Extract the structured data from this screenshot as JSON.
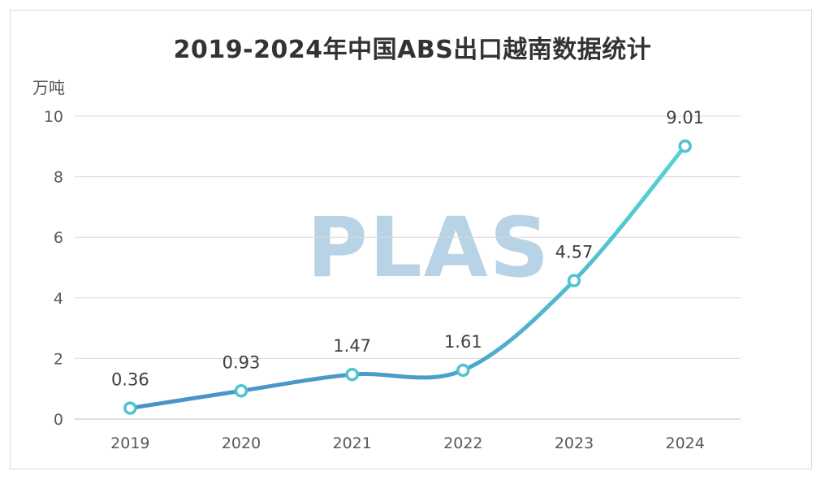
{
  "chart_data": {
    "type": "line",
    "title": "2019-2024年中国ABS出口越南数据统计",
    "ylabel": "万吨",
    "xlabel": "",
    "categories": [
      "2019",
      "2020",
      "2021",
      "2022",
      "2023",
      "2024"
    ],
    "series": [
      {
        "values": [
          0.36,
          0.93,
          1.47,
          1.61,
          4.57,
          9.01
        ]
      }
    ],
    "data_labels": [
      "0.36",
      "0.93",
      "1.47",
      "1.61",
      "4.57",
      "9.01"
    ],
    "ylim": [
      0,
      10
    ],
    "yticks": [
      "0",
      "2",
      "4",
      "6",
      "8",
      "10"
    ],
    "grid": true,
    "legend": "none",
    "line_gradient": [
      "#4a90c8",
      "#55d4d4"
    ],
    "marker_color": "#4fc3cf",
    "watermark": "PLAS"
  }
}
